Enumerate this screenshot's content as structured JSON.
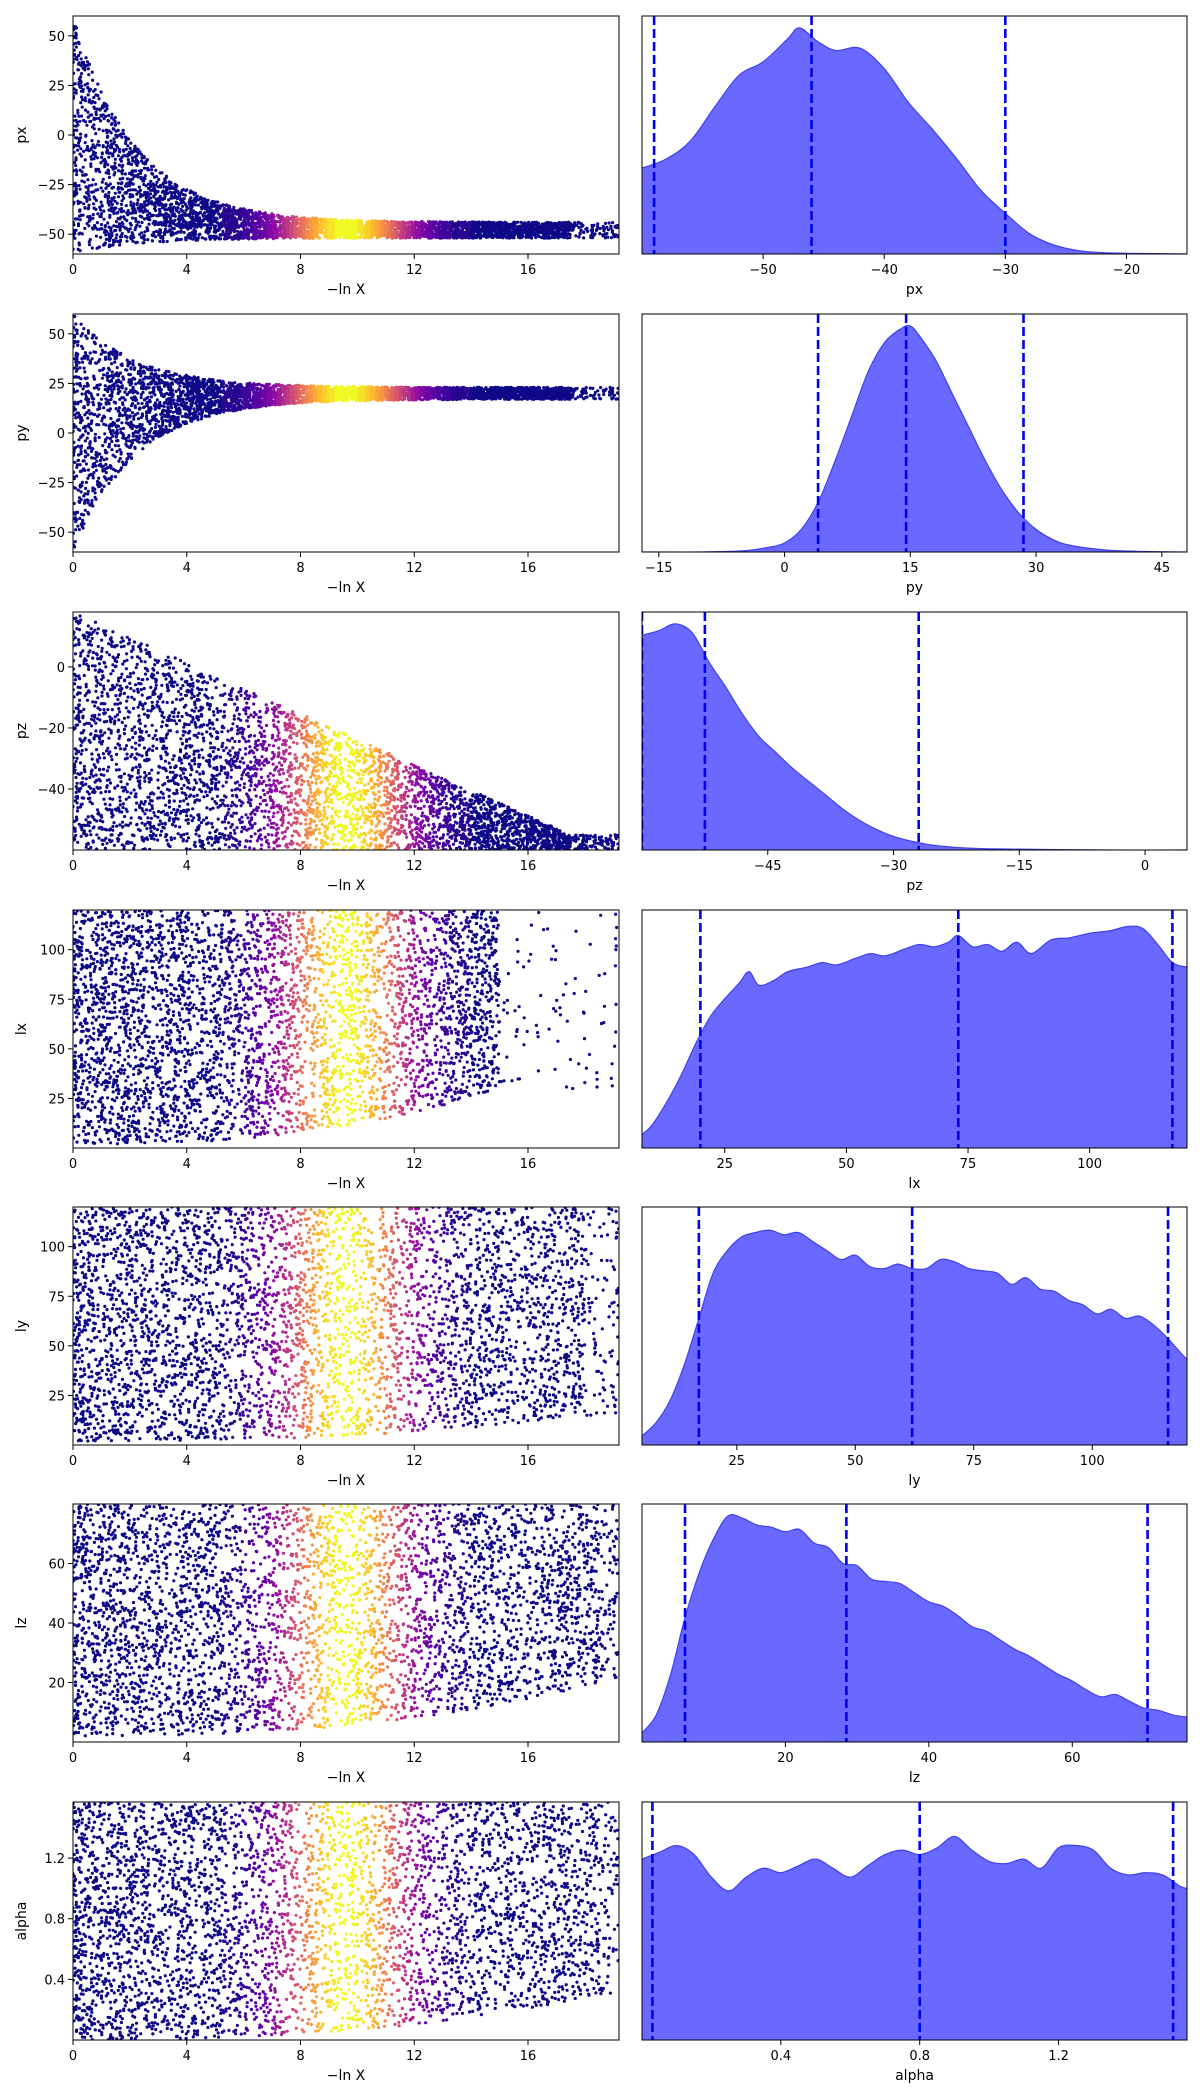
{
  "figure": {
    "background": "#ffffff"
  },
  "colors": {
    "kde_fill": "#5c5cff",
    "kde_line": "#4040ee",
    "quantile_line": "#0000ee",
    "colormap": "plasma",
    "low_weight_color": "#0d0887"
  },
  "chart_data": [
    {
      "type": "scatter",
      "name": "trace-px",
      "xlabel": "−ln X",
      "ylabel": "px",
      "xlim": [
        0,
        19.2
      ],
      "ylim": [
        -60,
        60
      ],
      "xticks": [
        "0",
        "4",
        "8",
        "12",
        "16"
      ],
      "yticks": [
        50,
        25,
        0,
        -25,
        -50
      ],
      "ytick_labels": [
        "50",
        "25",
        "0",
        "−25",
        "−50"
      ],
      "envelope": {
        "shape": "decay",
        "lo_start": -60,
        "hi_start": 60,
        "center_end": -48,
        "half_width_end": 4,
        "x_end": 17.5
      },
      "color_peak_x": 9.6,
      "color_sigma": 1.6
    },
    {
      "type": "area",
      "name": "posterior-px",
      "xlabel": "px",
      "xlim": [
        -60,
        -15
      ],
      "xticks": [
        -50,
        -40,
        -30,
        -20
      ],
      "xtick_labels": [
        "−50",
        "−40",
        "−30",
        "−20"
      ],
      "quantiles": [
        -59,
        -46,
        -30
      ],
      "kde": [
        [
          -60,
          0.38
        ],
        [
          -58,
          0.42
        ],
        [
          -56,
          0.5
        ],
        [
          -54,
          0.65
        ],
        [
          -52,
          0.79
        ],
        [
          -50,
          0.85
        ],
        [
          -48,
          0.95
        ],
        [
          -47,
          1.0
        ],
        [
          -45.5,
          0.94
        ],
        [
          -44,
          0.9
        ],
        [
          -42,
          0.91
        ],
        [
          -40,
          0.82
        ],
        [
          -38,
          0.67
        ],
        [
          -36,
          0.55
        ],
        [
          -34,
          0.42
        ],
        [
          -32,
          0.28
        ],
        [
          -30,
          0.18
        ],
        [
          -28,
          0.09
        ],
        [
          -26,
          0.04
        ],
        [
          -24,
          0.015
        ],
        [
          -22,
          0.006
        ],
        [
          -20,
          0.003
        ],
        [
          -15,
          0.0
        ]
      ]
    },
    {
      "type": "scatter",
      "name": "trace-py",
      "xlabel": "−ln X",
      "ylabel": "py",
      "xlim": [
        0,
        19.2
      ],
      "ylim": [
        -60,
        60
      ],
      "xticks": [
        "0",
        "4",
        "8",
        "12",
        "16"
      ],
      "yticks": [
        50,
        25,
        0,
        -25,
        -50
      ],
      "ytick_labels": [
        "50",
        "25",
        "0",
        "−25",
        "−50"
      ],
      "envelope": {
        "shape": "decay",
        "lo_start": -60,
        "hi_start": 60,
        "center_end": 20,
        "half_width_end": 3,
        "x_end": 17.5
      },
      "color_peak_x": 9.6,
      "color_sigma": 1.6
    },
    {
      "type": "area",
      "name": "posterior-py",
      "xlabel": "py",
      "xlim": [
        -17,
        48
      ],
      "xticks": [
        -15,
        0,
        15,
        30,
        45
      ],
      "xtick_labels": [
        "−15",
        "0",
        "15",
        "30",
        "45"
      ],
      "quantiles": [
        4,
        14.5,
        28.5
      ],
      "kde": [
        [
          -17,
          0.0
        ],
        [
          -10,
          0.0
        ],
        [
          -5,
          0.005
        ],
        [
          -2,
          0.02
        ],
        [
          0,
          0.04
        ],
        [
          2,
          0.1
        ],
        [
          4,
          0.22
        ],
        [
          6,
          0.4
        ],
        [
          8,
          0.6
        ],
        [
          10,
          0.8
        ],
        [
          12,
          0.93
        ],
        [
          14,
          0.99
        ],
        [
          15,
          1.0
        ],
        [
          16,
          0.96
        ],
        [
          18,
          0.85
        ],
        [
          20,
          0.7
        ],
        [
          22,
          0.55
        ],
        [
          24,
          0.4
        ],
        [
          26,
          0.27
        ],
        [
          28,
          0.17
        ],
        [
          30,
          0.1
        ],
        [
          32,
          0.055
        ],
        [
          34,
          0.03
        ],
        [
          38,
          0.01
        ],
        [
          42,
          0.003
        ],
        [
          48,
          0.0
        ]
      ]
    },
    {
      "type": "scatter",
      "name": "trace-pz",
      "xlabel": "−ln X",
      "ylabel": "pz",
      "xlim": [
        0,
        19.2
      ],
      "ylim": [
        -60,
        18
      ],
      "xticks": [
        "0",
        "4",
        "8",
        "12",
        "16"
      ],
      "yticks": [
        0,
        -20,
        -40
      ],
      "ytick_labels": [
        "0",
        "−20",
        "−40"
      ],
      "envelope": {
        "shape": "wedge",
        "lo_start": -60,
        "hi_start": 18,
        "hi_end": -55,
        "x_end": 17.5
      },
      "color_peak_x": 9.6,
      "color_sigma": 1.6
    },
    {
      "type": "area",
      "name": "posterior-pz",
      "xlabel": "pz",
      "xlim": [
        -60,
        5
      ],
      "xticks": [
        -45,
        -30,
        -15,
        0
      ],
      "xtick_labels": [
        "−45",
        "−30",
        "−15",
        "0"
      ],
      "quantiles": [
        -60,
        -52.5,
        -27
      ],
      "kde": [
        [
          -60,
          0.95
        ],
        [
          -58,
          0.97
        ],
        [
          -56,
          1.0
        ],
        [
          -54,
          0.96
        ],
        [
          -52,
          0.83
        ],
        [
          -50,
          0.72
        ],
        [
          -48,
          0.6
        ],
        [
          -46,
          0.5
        ],
        [
          -44,
          0.43
        ],
        [
          -42,
          0.36
        ],
        [
          -40,
          0.3
        ],
        [
          -38,
          0.24
        ],
        [
          -36,
          0.18
        ],
        [
          -34,
          0.13
        ],
        [
          -32,
          0.09
        ],
        [
          -30,
          0.06
        ],
        [
          -28,
          0.04
        ],
        [
          -26,
          0.025
        ],
        [
          -24,
          0.016
        ],
        [
          -22,
          0.01
        ],
        [
          -18,
          0.005
        ],
        [
          -12,
          0.002
        ],
        [
          -5,
          0.0
        ],
        [
          5,
          0.0
        ]
      ]
    },
    {
      "type": "scatter",
      "name": "trace-lx",
      "xlabel": "−ln X",
      "ylabel": "lx",
      "xlim": [
        0,
        19.2
      ],
      "ylim": [
        0,
        120
      ],
      "xticks": [
        "0",
        "4",
        "8",
        "12",
        "16"
      ],
      "yticks": [
        100,
        75,
        50,
        25
      ],
      "ytick_labels": [
        "100",
        "75",
        "50",
        "25"
      ],
      "envelope": {
        "shape": "uniform",
        "lo_start": 2,
        "hi_start": 120,
        "lo_end": 30,
        "x_end": 15
      },
      "color_peak_x": 9.6,
      "color_sigma": 1.6
    },
    {
      "type": "area",
      "name": "posterior-lx",
      "xlabel": "lx",
      "xlim": [
        8,
        120
      ],
      "xticks": [
        25,
        50,
        75,
        100
      ],
      "xtick_labels": [
        "25",
        "50",
        "75",
        "100"
      ],
      "quantiles": [
        20,
        73,
        117
      ],
      "kde": [
        [
          8,
          0.06
        ],
        [
          10,
          0.1
        ],
        [
          13,
          0.2
        ],
        [
          16,
          0.32
        ],
        [
          19,
          0.46
        ],
        [
          22,
          0.58
        ],
        [
          25,
          0.66
        ],
        [
          28,
          0.73
        ],
        [
          30,
          0.78
        ],
        [
          32,
          0.72
        ],
        [
          35,
          0.74
        ],
        [
          38,
          0.78
        ],
        [
          42,
          0.8
        ],
        [
          45,
          0.82
        ],
        [
          48,
          0.81
        ],
        [
          52,
          0.84
        ],
        [
          55,
          0.86
        ],
        [
          58,
          0.85
        ],
        [
          62,
          0.88
        ],
        [
          65,
          0.9
        ],
        [
          68,
          0.89
        ],
        [
          71,
          0.91
        ],
        [
          73,
          0.94
        ],
        [
          76,
          0.89
        ],
        [
          79,
          0.9
        ],
        [
          82,
          0.87
        ],
        [
          85,
          0.91
        ],
        [
          88,
          0.86
        ],
        [
          92,
          0.92
        ],
        [
          96,
          0.93
        ],
        [
          100,
          0.95
        ],
        [
          104,
          0.96
        ],
        [
          108,
          0.98
        ],
        [
          111,
          0.97
        ],
        [
          114,
          0.9
        ],
        [
          117,
          0.82
        ],
        [
          120,
          0.8
        ]
      ]
    },
    {
      "type": "scatter",
      "name": "trace-ly",
      "xlabel": "−ln X",
      "ylabel": "ly",
      "xlim": [
        0,
        19.2
      ],
      "ylim": [
        0,
        120
      ],
      "xticks": [
        "0",
        "4",
        "8",
        "12",
        "16"
      ],
      "yticks": [
        100,
        75,
        50,
        25
      ],
      "ytick_labels": [
        "100",
        "75",
        "50",
        "25"
      ],
      "envelope": {
        "shape": "uniform",
        "lo_start": 2,
        "hi_start": 120,
        "lo_end": 15,
        "x_end": 18
      },
      "color_peak_x": 9.6,
      "color_sigma": 1.6
    },
    {
      "type": "area",
      "name": "posterior-ly",
      "xlabel": "ly",
      "xlim": [
        5,
        120
      ],
      "xticks": [
        25,
        50,
        75,
        100
      ],
      "xtick_labels": [
        "25",
        "50",
        "75",
        "100"
      ],
      "quantiles": [
        17,
        62,
        116
      ],
      "kde": [
        [
          5,
          0.04
        ],
        [
          8,
          0.1
        ],
        [
          11,
          0.2
        ],
        [
          14,
          0.36
        ],
        [
          17,
          0.56
        ],
        [
          20,
          0.76
        ],
        [
          23,
          0.86
        ],
        [
          26,
          0.92
        ],
        [
          29,
          0.94
        ],
        [
          32,
          0.95
        ],
        [
          35,
          0.93
        ],
        [
          38,
          0.94
        ],
        [
          41,
          0.9
        ],
        [
          44,
          0.86
        ],
        [
          47,
          0.82
        ],
        [
          50,
          0.84
        ],
        [
          53,
          0.79
        ],
        [
          56,
          0.78
        ],
        [
          59,
          0.8
        ],
        [
          62,
          0.78
        ],
        [
          65,
          0.78
        ],
        [
          68,
          0.82
        ],
        [
          71,
          0.81
        ],
        [
          74,
          0.78
        ],
        [
          77,
          0.77
        ],
        [
          80,
          0.76
        ],
        [
          83,
          0.71
        ],
        [
          86,
          0.74
        ],
        [
          89,
          0.69
        ],
        [
          92,
          0.68
        ],
        [
          95,
          0.64
        ],
        [
          98,
          0.62
        ],
        [
          101,
          0.58
        ],
        [
          104,
          0.6
        ],
        [
          107,
          0.56
        ],
        [
          110,
          0.57
        ],
        [
          113,
          0.53
        ],
        [
          116,
          0.47
        ],
        [
          119,
          0.4
        ],
        [
          120,
          0.38
        ]
      ]
    },
    {
      "type": "scatter",
      "name": "trace-lz",
      "xlabel": "−ln X",
      "ylabel": "lz",
      "xlim": [
        0,
        19.2
      ],
      "ylim": [
        0,
        80
      ],
      "xticks": [
        "0",
        "4",
        "8",
        "12",
        "16"
      ],
      "yticks": [
        60,
        40,
        20
      ],
      "ytick_labels": [
        "60",
        "40",
        "20"
      ],
      "envelope": {
        "shape": "uniform",
        "lo_start": 2,
        "hi_start": 80,
        "lo_end": 20,
        "x_end": 18.5
      },
      "color_peak_x": 9.6,
      "color_sigma": 1.6
    },
    {
      "type": "area",
      "name": "posterior-lz",
      "xlabel": "lz",
      "xlim": [
        0,
        76
      ],
      "xticks": [
        20,
        40,
        60
      ],
      "xtick_labels": [
        "20",
        "40",
        "60"
      ],
      "quantiles": [
        6,
        28.5,
        70.5
      ],
      "kde": [
        [
          0,
          0.04
        ],
        [
          2,
          0.12
        ],
        [
          4,
          0.3
        ],
        [
          6,
          0.55
        ],
        [
          8,
          0.75
        ],
        [
          10,
          0.9
        ],
        [
          12,
          1.0
        ],
        [
          14,
          0.99
        ],
        [
          16,
          0.96
        ],
        [
          18,
          0.95
        ],
        [
          20,
          0.93
        ],
        [
          22,
          0.94
        ],
        [
          24,
          0.88
        ],
        [
          26,
          0.86
        ],
        [
          28,
          0.79
        ],
        [
          30,
          0.78
        ],
        [
          32,
          0.72
        ],
        [
          34,
          0.71
        ],
        [
          36,
          0.7
        ],
        [
          38,
          0.66
        ],
        [
          40,
          0.62
        ],
        [
          42,
          0.6
        ],
        [
          44,
          0.56
        ],
        [
          46,
          0.51
        ],
        [
          48,
          0.49
        ],
        [
          50,
          0.45
        ],
        [
          52,
          0.41
        ],
        [
          54,
          0.38
        ],
        [
          56,
          0.34
        ],
        [
          58,
          0.3
        ],
        [
          60,
          0.27
        ],
        [
          62,
          0.23
        ],
        [
          64,
          0.2
        ],
        [
          66,
          0.21
        ],
        [
          68,
          0.18
        ],
        [
          70,
          0.15
        ],
        [
          72,
          0.14
        ],
        [
          74,
          0.12
        ],
        [
          76,
          0.11
        ]
      ]
    },
    {
      "type": "scatter",
      "name": "trace-alpha",
      "xlabel": "−ln X",
      "ylabel": "alpha",
      "xlim": [
        0,
        19.2
      ],
      "ylim": [
        0,
        1.57
      ],
      "xticks": [
        "0",
        "4",
        "8",
        "12",
        "16"
      ],
      "yticks": [
        1.2,
        0.8,
        0.4
      ],
      "ytick_labels": [
        "1.2",
        "0.8",
        "0.4"
      ],
      "envelope": {
        "shape": "uniform",
        "lo_start": 0,
        "hi_start": 1.57,
        "lo_end": 0.3,
        "x_end": 18.5
      },
      "color_peak_x": 9.6,
      "color_sigma": 1.6
    },
    {
      "type": "area",
      "name": "posterior-alpha",
      "xlabel": "alpha",
      "xlim": [
        0,
        1.57
      ],
      "xticks": [
        0.4,
        0.8,
        1.2
      ],
      "xtick_labels": [
        "0.4",
        "0.8",
        "1.2"
      ],
      "quantiles": [
        0.03,
        0.8,
        1.53
      ],
      "kde": [
        [
          0,
          0.8
        ],
        [
          0.05,
          0.83
        ],
        [
          0.1,
          0.86
        ],
        [
          0.15,
          0.82
        ],
        [
          0.2,
          0.72
        ],
        [
          0.25,
          0.66
        ],
        [
          0.3,
          0.72
        ],
        [
          0.35,
          0.76
        ],
        [
          0.4,
          0.74
        ],
        [
          0.45,
          0.77
        ],
        [
          0.5,
          0.8
        ],
        [
          0.55,
          0.76
        ],
        [
          0.6,
          0.72
        ],
        [
          0.65,
          0.77
        ],
        [
          0.7,
          0.82
        ],
        [
          0.75,
          0.84
        ],
        [
          0.8,
          0.82
        ],
        [
          0.85,
          0.85
        ],
        [
          0.9,
          0.9
        ],
        [
          0.95,
          0.84
        ],
        [
          1.0,
          0.79
        ],
        [
          1.05,
          0.78
        ],
        [
          1.1,
          0.8
        ],
        [
          1.15,
          0.76
        ],
        [
          1.2,
          0.85
        ],
        [
          1.25,
          0.86
        ],
        [
          1.3,
          0.84
        ],
        [
          1.35,
          0.76
        ],
        [
          1.4,
          0.73
        ],
        [
          1.45,
          0.74
        ],
        [
          1.5,
          0.73
        ],
        [
          1.55,
          0.68
        ],
        [
          1.57,
          0.67
        ]
      ]
    }
  ]
}
